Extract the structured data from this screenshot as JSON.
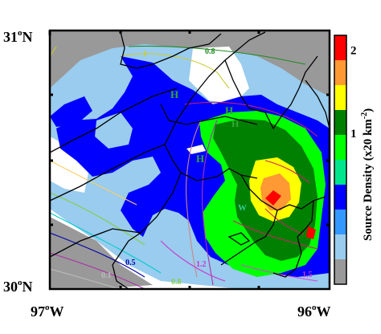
{
  "axes": {
    "y_top": {
      "deg": "31",
      "sup": "o",
      "hem": "N"
    },
    "y_bottom": {
      "deg": "30",
      "sup": "o",
      "hem": "N"
    },
    "x_left": {
      "deg": "97",
      "sup": "o",
      "hem": "W"
    },
    "x_right": {
      "deg": "96",
      "sup": "o",
      "hem": "W"
    }
  },
  "colorbar": {
    "title_main": "Source Density (x20 km",
    "title_sup": "-2",
    "title_end": ")",
    "levels": [
      {
        "color": "#ff0000"
      },
      {
        "color": "#ff9933"
      },
      {
        "color": "#ffff00"
      },
      {
        "color": "#008000"
      },
      {
        "color": "#00ff00"
      },
      {
        "color": "#00e68c"
      },
      {
        "color": "#0000ff"
      },
      {
        "color": "#3399ff"
      },
      {
        "color": "#99ccee"
      },
      {
        "color": "#999999"
      }
    ],
    "tick_labels": [
      {
        "text": "2",
        "value": 2
      },
      {
        "text": "1",
        "value": 1
      }
    ]
  },
  "map_labels": {
    "h1": "H",
    "h2": "H",
    "h3": "H",
    "h4": "H",
    "w1": "W",
    "c08_top": "0.8",
    "c1": "1",
    "c05": "0.5",
    "c08_bot": "0.8",
    "c01": "0.1",
    "c15": "1.5",
    "c12": "1.2"
  },
  "colors": {
    "gray": "#999999",
    "lightblue": "#99ccee",
    "blue": "#0000ff",
    "midblue": "#3399ff",
    "teal": "#00e68c",
    "lime": "#00ff00",
    "darkgreen": "#008000",
    "yellow": "#ffff00",
    "orange": "#ff9933",
    "red": "#ff0000"
  }
}
